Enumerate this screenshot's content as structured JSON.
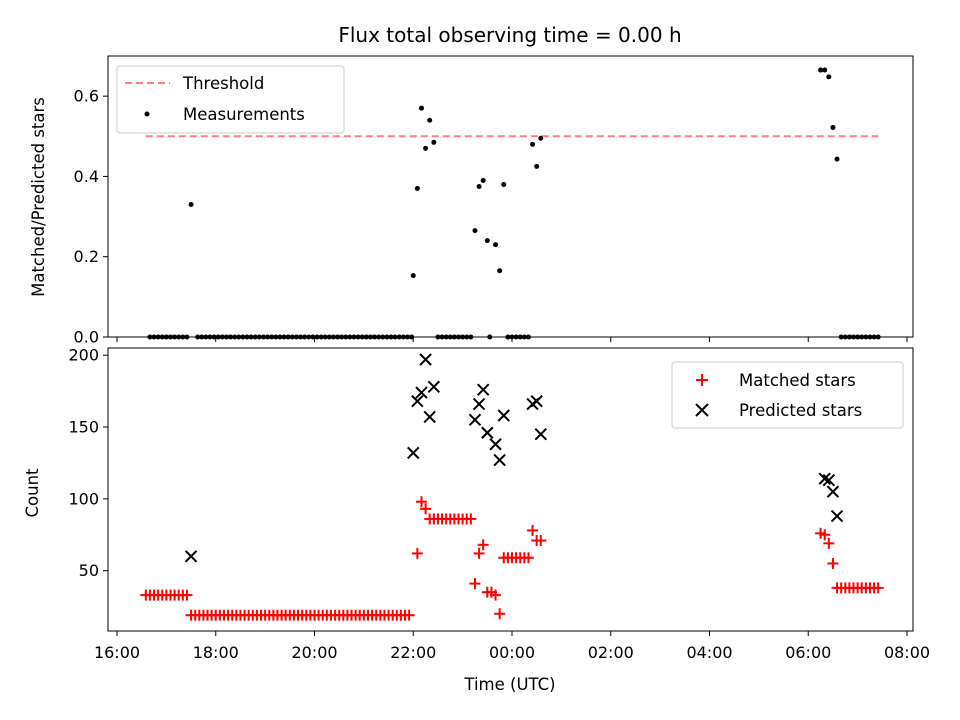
{
  "figure": {
    "title": "Flux total observing time = 0.00 h",
    "background": "#ffffff"
  },
  "chart_data": [
    {
      "type": "scatter",
      "panel": "top",
      "ylabel": "Matched/Predicted stars",
      "xlim": [
        16.0,
        8.0
      ],
      "ylim": [
        0,
        0.7
      ],
      "yticks": [
        0.0,
        0.2,
        0.4,
        0.6
      ],
      "ytick_labels": [
        "0.0",
        "0.2",
        "0.4",
        "0.6"
      ],
      "legend_position": "top-left",
      "threshold": {
        "name": "Threshold",
        "value": 0.5,
        "x_range": [
          "16:35",
          "07:25"
        ],
        "color": "#ff7f7f",
        "style": "dashed"
      },
      "series": [
        {
          "name": "Measurements",
          "color": "#000000",
          "marker": "dot",
          "points": [
            [
              "16:40",
              0
            ],
            [
              "16:45",
              0
            ],
            [
              "16:50",
              0
            ],
            [
              "16:55",
              0
            ],
            [
              "17:00",
              0
            ],
            [
              "17:05",
              0
            ],
            [
              "17:10",
              0
            ],
            [
              "17:15",
              0
            ],
            [
              "17:20",
              0
            ],
            [
              "17:25",
              0
            ],
            [
              "17:30",
              0.33
            ],
            [
              "17:38",
              0
            ],
            [
              "17:43",
              0
            ],
            [
              "17:48",
              0
            ],
            [
              "17:53",
              0
            ],
            [
              "17:58",
              0
            ],
            [
              "18:03",
              0
            ],
            [
              "18:08",
              0
            ],
            [
              "18:13",
              0
            ],
            [
              "18:18",
              0
            ],
            [
              "18:23",
              0
            ],
            [
              "18:28",
              0
            ],
            [
              "18:33",
              0
            ],
            [
              "18:38",
              0
            ],
            [
              "18:43",
              0
            ],
            [
              "18:48",
              0
            ],
            [
              "18:53",
              0
            ],
            [
              "18:58",
              0
            ],
            [
              "19:03",
              0
            ],
            [
              "19:08",
              0
            ],
            [
              "19:13",
              0
            ],
            [
              "19:18",
              0
            ],
            [
              "19:23",
              0
            ],
            [
              "19:28",
              0
            ],
            [
              "19:33",
              0
            ],
            [
              "19:38",
              0
            ],
            [
              "19:43",
              0
            ],
            [
              "19:48",
              0
            ],
            [
              "19:53",
              0
            ],
            [
              "19:58",
              0
            ],
            [
              "20:03",
              0
            ],
            [
              "20:08",
              0
            ],
            [
              "20:13",
              0
            ],
            [
              "20:18",
              0
            ],
            [
              "20:23",
              0
            ],
            [
              "20:28",
              0
            ],
            [
              "20:33",
              0
            ],
            [
              "20:38",
              0
            ],
            [
              "20:43",
              0
            ],
            [
              "20:48",
              0
            ],
            [
              "20:53",
              0
            ],
            [
              "20:58",
              0
            ],
            [
              "21:03",
              0
            ],
            [
              "21:08",
              0
            ],
            [
              "21:13",
              0
            ],
            [
              "21:18",
              0
            ],
            [
              "21:23",
              0
            ],
            [
              "21:28",
              0
            ],
            [
              "21:33",
              0
            ],
            [
              "21:38",
              0
            ],
            [
              "21:43",
              0
            ],
            [
              "21:48",
              0
            ],
            [
              "21:53",
              0
            ],
            [
              "21:58",
              0
            ],
            [
              "22:00",
              0.153
            ],
            [
              "22:05",
              0.37
            ],
            [
              "22:10",
              0.57
            ],
            [
              "22:15",
              0.47
            ],
            [
              "22:20",
              0.54
            ],
            [
              "22:25",
              0.485
            ],
            [
              "22:30",
              0
            ],
            [
              "22:35",
              0
            ],
            [
              "22:40",
              0
            ],
            [
              "22:45",
              0
            ],
            [
              "22:50",
              0
            ],
            [
              "22:55",
              0
            ],
            [
              "23:00",
              0
            ],
            [
              "23:05",
              0
            ],
            [
              "23:10",
              0
            ],
            [
              "23:15",
              0.265
            ],
            [
              "23:20",
              0.375
            ],
            [
              "23:25",
              0.39
            ],
            [
              "23:30",
              0.24
            ],
            [
              "23:33",
              0
            ],
            [
              "23:40",
              0.23
            ],
            [
              "23:45",
              0.165
            ],
            [
              "23:50",
              0.38
            ],
            [
              "23:55",
              0
            ],
            [
              "00:00",
              0
            ],
            [
              "00:05",
              0
            ],
            [
              "00:10",
              0
            ],
            [
              "00:15",
              0
            ],
            [
              "00:20",
              0
            ],
            [
              "00:25",
              0.48
            ],
            [
              "00:30",
              0.425
            ],
            [
              "00:35",
              0.495
            ],
            [
              "06:15",
              0.665
            ],
            [
              "06:20",
              0.665
            ],
            [
              "06:25",
              0.648
            ],
            [
              "06:30",
              0.522
            ],
            [
              "06:35",
              0.443
            ],
            [
              "06:40",
              0
            ],
            [
              "06:45",
              0
            ],
            [
              "06:50",
              0
            ],
            [
              "06:55",
              0
            ],
            [
              "07:00",
              0
            ],
            [
              "07:05",
              0
            ],
            [
              "07:10",
              0
            ],
            [
              "07:15",
              0
            ],
            [
              "07:20",
              0
            ],
            [
              "07:25",
              0
            ]
          ]
        }
      ]
    },
    {
      "type": "scatter",
      "panel": "bottom",
      "xlabel": "Time (UTC)",
      "ylabel": "Count",
      "xlim": [
        16.0,
        8.0
      ],
      "ylim": [
        8,
        205
      ],
      "yticks": [
        50,
        100,
        150,
        200
      ],
      "ytick_labels": [
        "50",
        "100",
        "150",
        "200"
      ],
      "xticks": [
        "16:00",
        "18:00",
        "20:00",
        "22:00",
        "00:00",
        "02:00",
        "04:00",
        "06:00",
        "08:00"
      ],
      "legend_position": "top-right",
      "series": [
        {
          "name": "Matched stars",
          "color": "#ff0000",
          "marker": "plus",
          "points": [
            [
              "16:35",
              33
            ],
            [
              "16:40",
              33
            ],
            [
              "16:45",
              33
            ],
            [
              "16:50",
              33
            ],
            [
              "16:55",
              33
            ],
            [
              "17:00",
              33
            ],
            [
              "17:05",
              33
            ],
            [
              "17:10",
              33
            ],
            [
              "17:15",
              33
            ],
            [
              "17:20",
              33
            ],
            [
              "17:25",
              33
            ],
            [
              "17:30",
              19
            ],
            [
              "17:35",
              19
            ],
            [
              "17:40",
              19
            ],
            [
              "17:45",
              19
            ],
            [
              "17:50",
              19
            ],
            [
              "17:55",
              19
            ],
            [
              "18:00",
              19
            ],
            [
              "18:05",
              19
            ],
            [
              "18:10",
              19
            ],
            [
              "18:15",
              19
            ],
            [
              "18:20",
              19
            ],
            [
              "18:25",
              19
            ],
            [
              "18:30",
              19
            ],
            [
              "18:35",
              19
            ],
            [
              "18:40",
              19
            ],
            [
              "18:45",
              19
            ],
            [
              "18:50",
              19
            ],
            [
              "18:55",
              19
            ],
            [
              "19:00",
              19
            ],
            [
              "19:05",
              19
            ],
            [
              "19:10",
              19
            ],
            [
              "19:15",
              19
            ],
            [
              "19:20",
              19
            ],
            [
              "19:25",
              19
            ],
            [
              "19:30",
              19
            ],
            [
              "19:35",
              19
            ],
            [
              "19:40",
              19
            ],
            [
              "19:45",
              19
            ],
            [
              "19:50",
              19
            ],
            [
              "19:55",
              19
            ],
            [
              "20:00",
              19
            ],
            [
              "20:05",
              19
            ],
            [
              "20:10",
              19
            ],
            [
              "20:15",
              19
            ],
            [
              "20:20",
              19
            ],
            [
              "20:25",
              19
            ],
            [
              "20:30",
              19
            ],
            [
              "20:35",
              19
            ],
            [
              "20:40",
              19
            ],
            [
              "20:45",
              19
            ],
            [
              "20:50",
              19
            ],
            [
              "20:55",
              19
            ],
            [
              "21:00",
              19
            ],
            [
              "21:05",
              19
            ],
            [
              "21:10",
              19
            ],
            [
              "21:15",
              19
            ],
            [
              "21:20",
              19
            ],
            [
              "21:25",
              19
            ],
            [
              "21:30",
              19
            ],
            [
              "21:35",
              19
            ],
            [
              "21:40",
              19
            ],
            [
              "21:45",
              19
            ],
            [
              "21:50",
              19
            ],
            [
              "21:55",
              19
            ],
            [
              "22:05",
              62
            ],
            [
              "22:10",
              98
            ],
            [
              "22:15",
              93
            ],
            [
              "22:20",
              86
            ],
            [
              "22:25",
              86
            ],
            [
              "22:30",
              86
            ],
            [
              "22:35",
              86
            ],
            [
              "22:40",
              86
            ],
            [
              "22:45",
              86
            ],
            [
              "22:50",
              86
            ],
            [
              "22:55",
              86
            ],
            [
              "23:00",
              86
            ],
            [
              "23:05",
              86
            ],
            [
              "23:10",
              86
            ],
            [
              "23:15",
              41
            ],
            [
              "23:20",
              62
            ],
            [
              "23:25",
              68
            ],
            [
              "23:30",
              35
            ],
            [
              "23:35",
              35
            ],
            [
              "23:40",
              33
            ],
            [
              "23:45",
              20
            ],
            [
              "23:50",
              59
            ],
            [
              "23:55",
              59
            ],
            [
              "00:00",
              59
            ],
            [
              "00:05",
              59
            ],
            [
              "00:10",
              59
            ],
            [
              "00:15",
              59
            ],
            [
              "00:20",
              59
            ],
            [
              "00:25",
              78
            ],
            [
              "00:30",
              71
            ],
            [
              "00:35",
              71
            ],
            [
              "06:15",
              76
            ],
            [
              "06:20",
              75
            ],
            [
              "06:25",
              69
            ],
            [
              "06:30",
              55
            ],
            [
              "06:35",
              38
            ],
            [
              "06:40",
              38
            ],
            [
              "06:45",
              38
            ],
            [
              "06:50",
              38
            ],
            [
              "06:55",
              38
            ],
            [
              "07:00",
              38
            ],
            [
              "07:05",
              38
            ],
            [
              "07:10",
              38
            ],
            [
              "07:15",
              38
            ],
            [
              "07:20",
              38
            ],
            [
              "07:25",
              38
            ]
          ]
        },
        {
          "name": "Predicted stars",
          "color": "#000000",
          "marker": "x",
          "points": [
            [
              "17:30",
              60
            ],
            [
              "22:00",
              132
            ],
            [
              "22:05",
              168
            ],
            [
              "22:10",
              174
            ],
            [
              "22:15",
              197
            ],
            [
              "22:20",
              157
            ],
            [
              "22:25",
              178
            ],
            [
              "23:15",
              155
            ],
            [
              "23:20",
              166
            ],
            [
              "23:25",
              176
            ],
            [
              "23:30",
              146
            ],
            [
              "23:40",
              138
            ],
            [
              "23:45",
              127
            ],
            [
              "23:50",
              158
            ],
            [
              "00:25",
              166
            ],
            [
              "00:30",
              168
            ],
            [
              "00:35",
              145
            ],
            [
              "06:20",
              114
            ],
            [
              "06:25",
              113
            ],
            [
              "06:30",
              105
            ],
            [
              "06:35",
              88
            ]
          ]
        }
      ]
    }
  ]
}
